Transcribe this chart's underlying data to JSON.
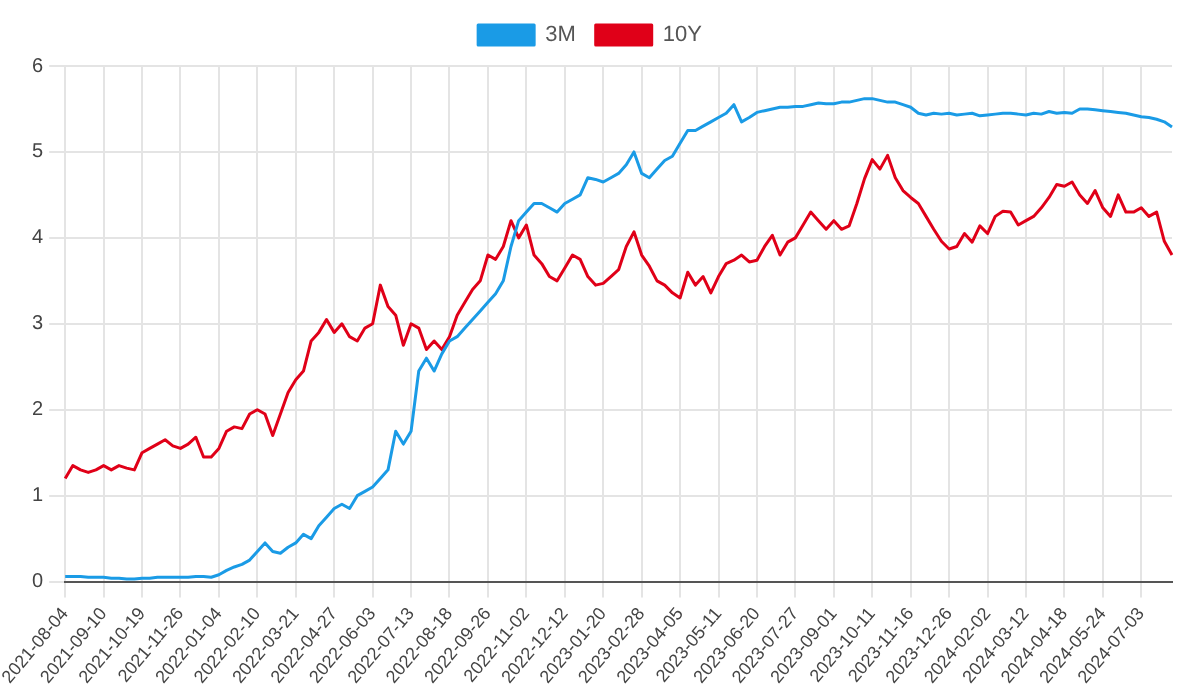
{
  "chart_data": {
    "type": "line",
    "categories": [
      "2021-08-04",
      null,
      null,
      null,
      null,
      "2021-09-10",
      null,
      null,
      null,
      null,
      "2021-10-19",
      null,
      null,
      null,
      null,
      "2021-11-26",
      null,
      null,
      null,
      null,
      "2022-01-04",
      null,
      null,
      null,
      null,
      "2022-02-10",
      null,
      null,
      null,
      null,
      "2022-03-21",
      null,
      null,
      null,
      null,
      "2022-04-27",
      null,
      null,
      null,
      null,
      "2022-06-03",
      null,
      null,
      null,
      null,
      "2022-07-13",
      null,
      null,
      null,
      null,
      "2022-08-18",
      null,
      null,
      null,
      null,
      "2022-09-26",
      null,
      null,
      null,
      null,
      "2022-11-02",
      null,
      null,
      null,
      null,
      "2022-12-12",
      null,
      null,
      null,
      null,
      "2023-01-20",
      null,
      null,
      null,
      null,
      "2023-02-28",
      null,
      null,
      null,
      null,
      "2023-04-05",
      null,
      null,
      null,
      null,
      "2023-05-11",
      null,
      null,
      null,
      null,
      "2023-06-20",
      null,
      null,
      null,
      null,
      "2023-07-27",
      null,
      null,
      null,
      null,
      "2023-09-01",
      null,
      null,
      null,
      null,
      "2023-10-11",
      null,
      null,
      null,
      null,
      "2023-11-16",
      null,
      null,
      null,
      null,
      "2023-12-26",
      null,
      null,
      null,
      null,
      "2024-02-02",
      null,
      null,
      null,
      null,
      "2024-03-12",
      null,
      null,
      null,
      null,
      "2024-04-18",
      null,
      null,
      null,
      null,
      "2024-05-24",
      null,
      null,
      null,
      null,
      "2024-07-03",
      null,
      null,
      null,
      null
    ],
    "series": [
      {
        "name": "3M",
        "color": "#1a9be6",
        "values": [
          0.06,
          0.06,
          0.06,
          0.05,
          0.05,
          0.05,
          0.04,
          0.04,
          0.03,
          0.03,
          0.04,
          0.04,
          0.05,
          0.05,
          0.05,
          0.05,
          0.05,
          0.06,
          0.06,
          0.05,
          0.08,
          0.13,
          0.17,
          0.2,
          0.25,
          0.35,
          0.45,
          0.35,
          0.33,
          0.4,
          0.45,
          0.55,
          0.5,
          0.65,
          0.75,
          0.85,
          0.9,
          0.85,
          1.0,
          1.05,
          1.1,
          1.2,
          1.3,
          1.75,
          1.6,
          1.75,
          2.45,
          2.6,
          2.45,
          2.65,
          2.8,
          2.85,
          2.95,
          3.05,
          3.15,
          3.25,
          3.35,
          3.5,
          3.9,
          4.2,
          4.3,
          4.4,
          4.4,
          4.35,
          4.3,
          4.4,
          4.45,
          4.5,
          4.7,
          4.68,
          4.65,
          4.7,
          4.75,
          4.85,
          5.0,
          4.75,
          4.7,
          4.8,
          4.9,
          4.95,
          5.1,
          5.25,
          5.25,
          5.3,
          5.35,
          5.4,
          5.45,
          5.55,
          5.35,
          5.4,
          5.46,
          5.48,
          5.5,
          5.52,
          5.52,
          5.53,
          5.53,
          5.55,
          5.57,
          5.56,
          5.56,
          5.58,
          5.58,
          5.6,
          5.62,
          5.62,
          5.6,
          5.58,
          5.58,
          5.55,
          5.52,
          5.45,
          5.43,
          5.45,
          5.44,
          5.45,
          5.43,
          5.44,
          5.45,
          5.42,
          5.43,
          5.44,
          5.45,
          5.45,
          5.44,
          5.43,
          5.45,
          5.44,
          5.47,
          5.45,
          5.46,
          5.45,
          5.5,
          5.5,
          5.49,
          5.48,
          5.47,
          5.46,
          5.45,
          5.43,
          5.41,
          5.4,
          5.38,
          5.35,
          5.29
        ]
      },
      {
        "name": "10Y",
        "color": "#e00018",
        "values": [
          1.2,
          1.35,
          1.3,
          1.27,
          1.3,
          1.35,
          1.3,
          1.35,
          1.32,
          1.3,
          1.5,
          1.55,
          1.6,
          1.65,
          1.58,
          1.55,
          1.6,
          1.68,
          1.45,
          1.45,
          1.55,
          1.75,
          1.8,
          1.78,
          1.95,
          2.0,
          1.95,
          1.7,
          1.95,
          2.2,
          2.35,
          2.45,
          2.8,
          2.9,
          3.05,
          2.9,
          3.0,
          2.85,
          2.8,
          2.95,
          3.0,
          3.45,
          3.2,
          3.1,
          2.75,
          3.0,
          2.95,
          2.7,
          2.8,
          2.7,
          2.85,
          3.1,
          3.25,
          3.4,
          3.5,
          3.8,
          3.75,
          3.9,
          4.2,
          4.0,
          4.15,
          3.8,
          3.7,
          3.55,
          3.5,
          3.65,
          3.8,
          3.75,
          3.55,
          3.45,
          3.47,
          3.55,
          3.63,
          3.9,
          4.07,
          3.8,
          3.67,
          3.5,
          3.45,
          3.36,
          3.3,
          3.6,
          3.45,
          3.55,
          3.36,
          3.55,
          3.7,
          3.74,
          3.8,
          3.72,
          3.74,
          3.9,
          4.03,
          3.8,
          3.95,
          4.0,
          4.15,
          4.3,
          4.2,
          4.1,
          4.2,
          4.1,
          4.14,
          4.4,
          4.69,
          4.91,
          4.8,
          4.96,
          4.7,
          4.55,
          4.47,
          4.4,
          4.25,
          4.1,
          3.96,
          3.87,
          3.9,
          4.05,
          3.95,
          4.14,
          4.05,
          4.25,
          4.31,
          4.3,
          4.15,
          4.2,
          4.25,
          4.35,
          4.47,
          4.62,
          4.6,
          4.65,
          4.5,
          4.4,
          4.55,
          4.35,
          4.25,
          4.5,
          4.3,
          4.3,
          4.35,
          4.25,
          4.3,
          3.96,
          3.8
        ]
      }
    ],
    "ylim": [
      0,
      6
    ],
    "yticks": [
      0,
      1,
      2,
      3,
      4,
      5,
      6
    ],
    "grid": true,
    "legend": "top",
    "marker": "none",
    "line_style": "solid"
  }
}
